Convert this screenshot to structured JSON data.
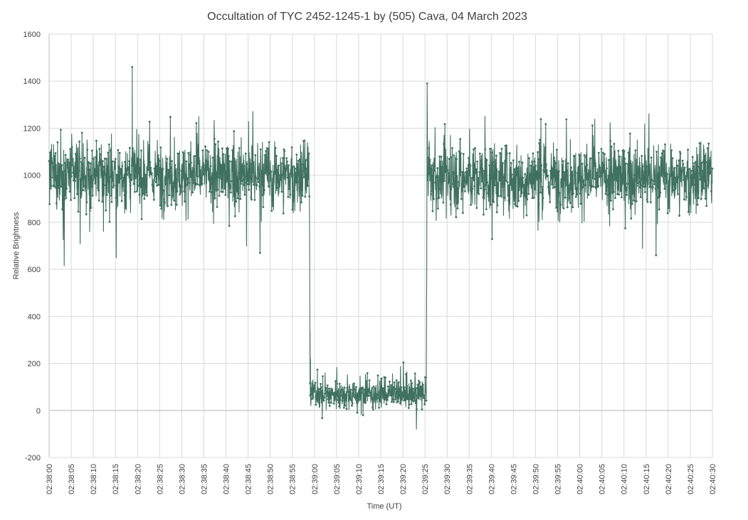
{
  "chart_data": {
    "type": "line",
    "title": "Occultation of TYC 2452-1245-1 by (505) Cava, 04 March 2023",
    "xlabel": "Time (UT)",
    "ylabel": "Relative Brightness",
    "ylim": [
      -200,
      1600
    ],
    "yticks": [
      -200,
      0,
      200,
      400,
      600,
      800,
      1000,
      1200,
      1400,
      1600
    ],
    "xlim": [
      "02:38:00",
      "02:40:30"
    ],
    "xticks": [
      "02:38:00",
      "02:38:05",
      "02:38:10",
      "02:38:15",
      "02:38:20",
      "02:38:25",
      "02:38:30",
      "02:38:35",
      "02:38:40",
      "02:38:45",
      "02:38:50",
      "02:38:55",
      "02:39:00",
      "02:39:05",
      "02:39:10",
      "02:39:15",
      "02:39:20",
      "02:39:25",
      "02:39:30",
      "02:39:35",
      "02:39:40",
      "02:39:45",
      "02:39:50",
      "02:39:55",
      "02:40:00",
      "02:40:05",
      "02:40:10",
      "02:40:15",
      "02:40:20",
      "02:40:25",
      "02:40:30"
    ],
    "grid": true,
    "line_color": "#3f7060",
    "series": [
      {
        "segments": [
          {
            "start": "02:38:00",
            "end": "02:38:58.9",
            "mean": 1000,
            "noise": 95
          },
          {
            "start": "02:38:59.0",
            "end": "02:39:25.3",
            "mean": 70,
            "noise": 40
          },
          {
            "start": "02:39:25.6",
            "end": "02:40:30",
            "mean": 990,
            "noise": 95
          }
        ],
        "key_points": [
          {
            "x": "02:38:18.8",
            "y": 1460
          },
          {
            "x": "02:38:58.9",
            "y": 750
          },
          {
            "x": "02:38:59.0",
            "y": 340
          },
          {
            "x": "02:38:59.1",
            "y": 220
          },
          {
            "x": "02:39:25.4",
            "y": 600
          },
          {
            "x": "02:39:25.5",
            "y": 1390
          }
        ]
      }
    ]
  }
}
